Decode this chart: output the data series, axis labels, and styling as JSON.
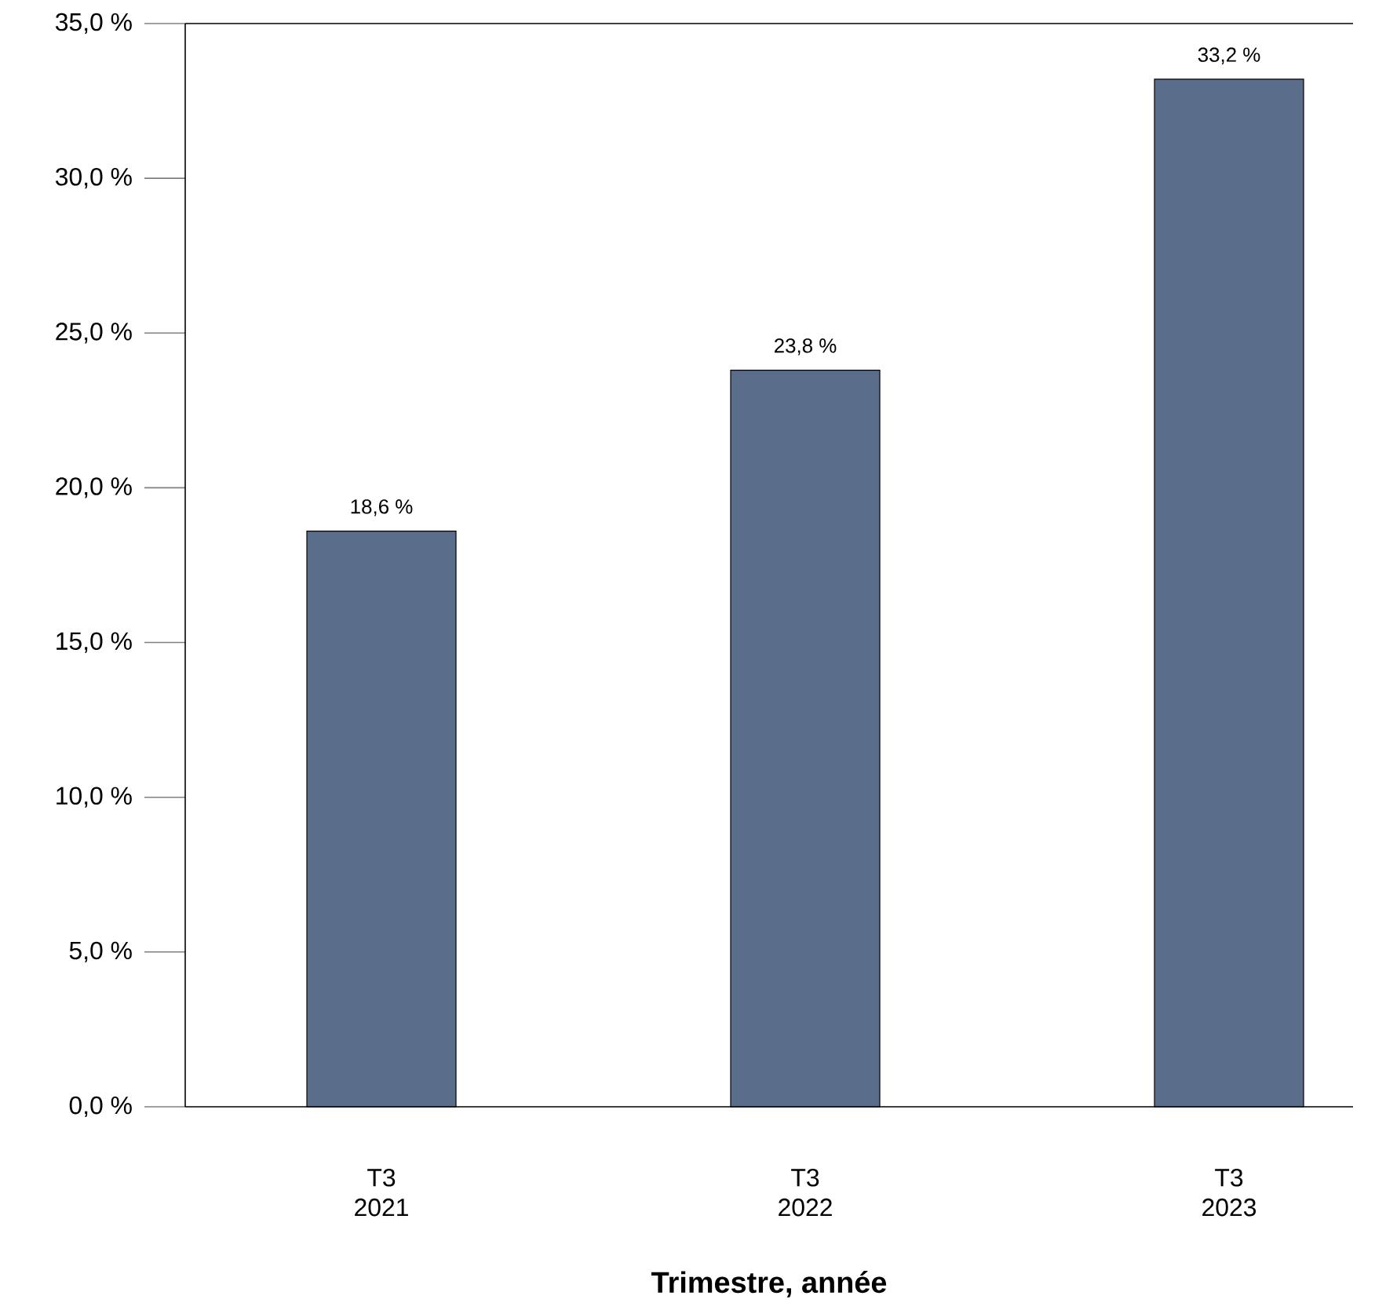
{
  "chart_data": {
    "type": "bar",
    "xlabel": "Trimestre, année",
    "categories": [
      "T3 2021",
      "T3 2022",
      "T3 2023"
    ],
    "values": [
      18.6,
      23.8,
      33.2
    ],
    "value_labels": [
      "18,6 %",
      "23,8 %",
      "33,2 %"
    ],
    "color": "#5a6e8b",
    "ylim": [
      0,
      35
    ],
    "yticks": [
      {
        "value": 0,
        "label": "0,0 %"
      },
      {
        "value": 5,
        "label": "5,0 %"
      },
      {
        "value": 10,
        "label": "10,0 %"
      },
      {
        "value": 15,
        "label": "15,0 %"
      },
      {
        "value": 20,
        "label": "20,0 %"
      },
      {
        "value": 25,
        "label": "25,0 %"
      },
      {
        "value": 30,
        "label": "30,0 %"
      },
      {
        "value": 35,
        "label": "35,0 %"
      }
    ],
    "grid": false
  }
}
